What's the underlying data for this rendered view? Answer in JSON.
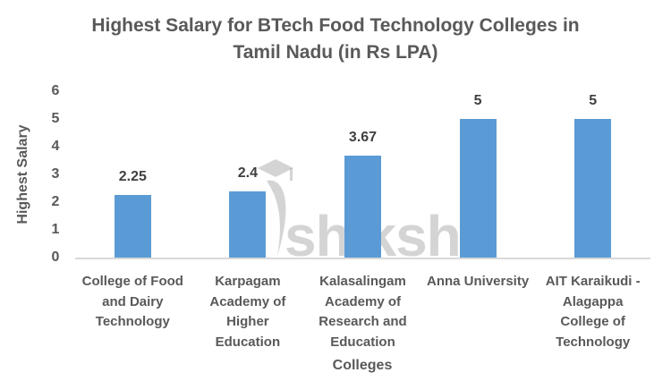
{
  "chart_data": {
    "type": "bar",
    "title": "Highest Salary for BTech Food Technology Colleges in Tamil Nadu (in Rs LPA)",
    "title_lines": [
      "Highest Salary for BTech Food Technology Colleges in",
      "Tamil Nadu (in Rs LPA)"
    ],
    "xlabel": "Colleges",
    "ylabel": "Highest Salary",
    "ylim": [
      0,
      6
    ],
    "yticks": [
      "0",
      "1",
      "2",
      "3",
      "4",
      "5",
      "6"
    ],
    "grid": false,
    "legend": null,
    "categories": [
      "College of Food and Dairy Technology",
      "Karpagam Academy of Higher Education",
      "Kalasalingam Academy of Research and Education",
      "Anna University",
      "AIT Karaikudi - Alagappa College of Technology"
    ],
    "category_lines": [
      [
        "College of Food",
        "and Dairy",
        "Technology"
      ],
      [
        "Karpagam",
        "Academy of",
        "Higher",
        "Education"
      ],
      [
        "Kalasalingam",
        "Academy of",
        "Research and",
        "Education"
      ],
      [
        "Anna University"
      ],
      [
        "AIT Karaikudi -",
        "Alagappa",
        "College of",
        "Technology"
      ]
    ],
    "values": [
      2.25,
      2.4,
      3.67,
      5,
      5
    ],
    "value_labels": [
      "2.25",
      "2.4",
      "3.67",
      "5",
      "5"
    ],
    "bar_color": "#5b9bd5"
  },
  "watermark": {
    "text": "shiksha"
  }
}
